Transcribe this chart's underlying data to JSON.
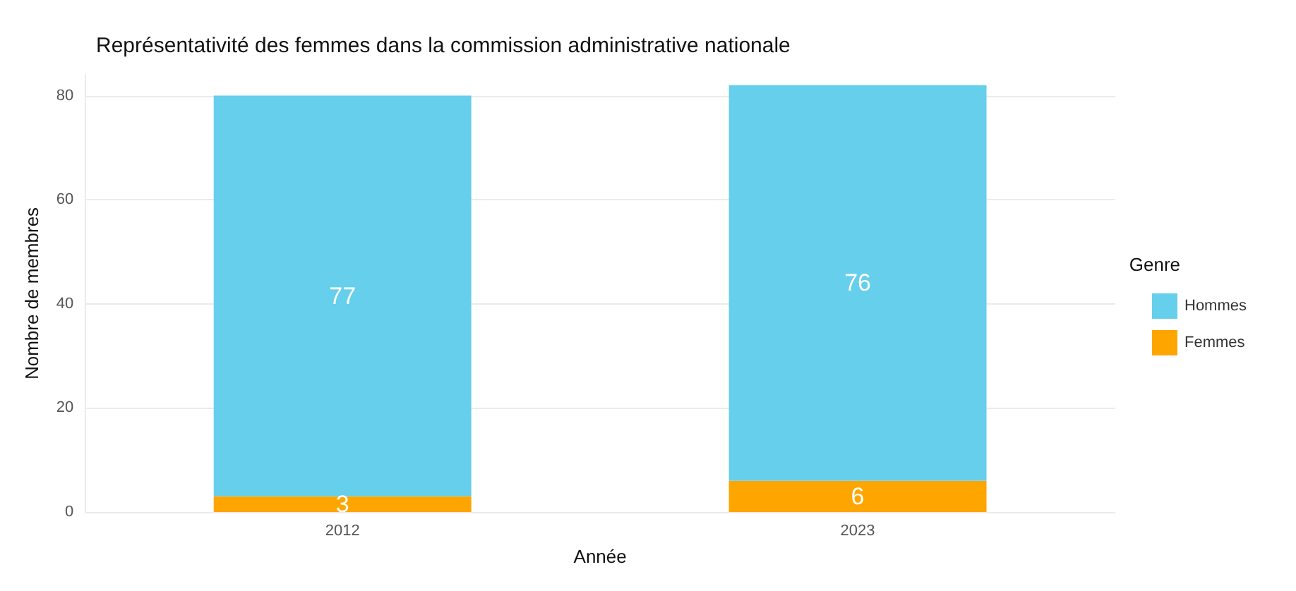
{
  "chart_data": {
    "type": "bar",
    "title": "Représentativité des femmes dans la commission administrative nationale",
    "xlabel": "Année",
    "ylabel": "Nombre de membres",
    "legend_title": "Genre",
    "categories": [
      "2012",
      "2023"
    ],
    "stacked": true,
    "series": [
      {
        "name": "Femmes",
        "color": "#ffa500",
        "values": [
          3,
          6
        ]
      },
      {
        "name": "Hommes",
        "color": "#66cfeb",
        "values": [
          77,
          76
        ]
      }
    ],
    "ylim": [
      0,
      84
    ],
    "yticks": [
      0,
      20,
      40,
      60,
      80
    ],
    "grid": true,
    "legend": "right",
    "data_labels": true
  }
}
